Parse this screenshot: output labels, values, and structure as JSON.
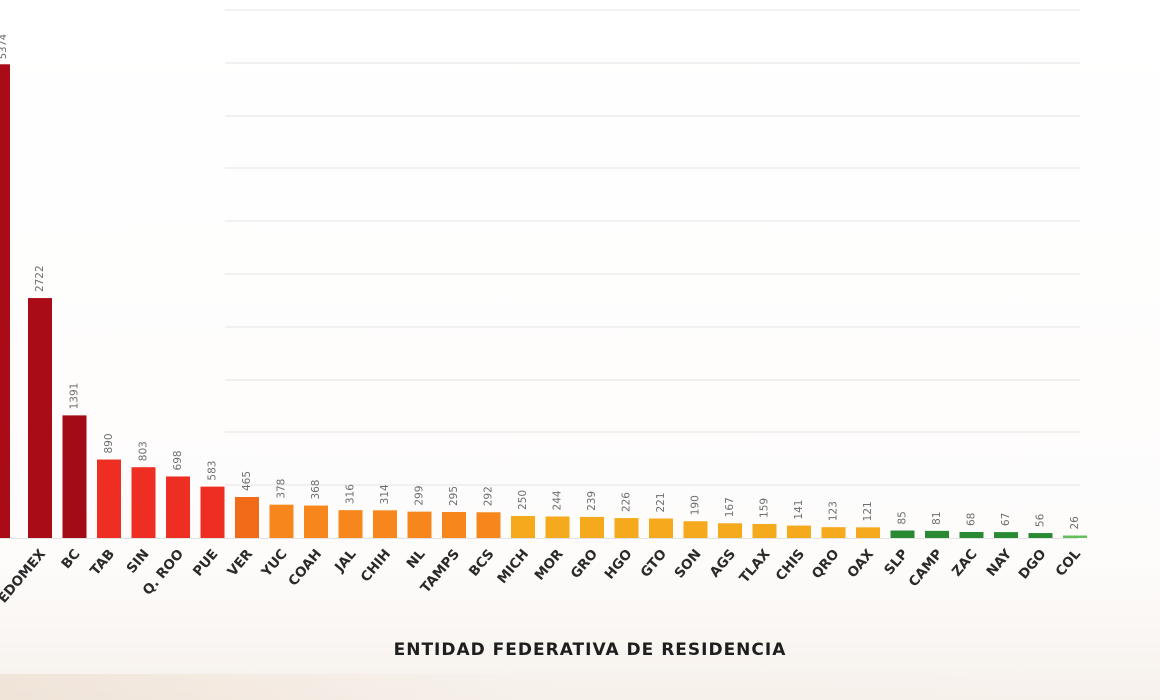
{
  "chart_data": {
    "type": "bar",
    "xlabel": "ENTIDAD FEDERATIVA DE RESIDENCIA",
    "ylim": [
      0,
      5400
    ],
    "grid": true,
    "categories": [
      "EDOMEX",
      "BC",
      "TAB",
      "SIN",
      "Q. ROO",
      "PUE",
      "VER",
      "YUC",
      "COAH",
      "JAL",
      "CHIH",
      "NL",
      "TAMPS",
      "BCS",
      "MICH",
      "MOR",
      "GRO",
      "HGO",
      "GTO",
      "SON",
      "AGS",
      "TLAX",
      "CHIS",
      "QRO",
      "OAX",
      "SLP",
      "CAMP",
      "ZAC",
      "NAY",
      "DGO",
      "COL"
    ],
    "values": [
      2722,
      1391,
      890,
      803,
      698,
      583,
      465,
      378,
      368,
      316,
      314,
      299,
      295,
      292,
      250,
      244,
      239,
      226,
      221,
      190,
      167,
      159,
      141,
      123,
      121,
      85,
      81,
      68,
      67,
      56,
      26
    ],
    "value_labels": [
      "2722",
      "1391",
      "890",
      "803",
      "698",
      "583",
      "465",
      "378",
      "368",
      "316",
      "314",
      "299",
      "295",
      "292",
      "250",
      "244",
      "239",
      "226",
      "221",
      "190",
      "167",
      "159",
      "141",
      "123",
      "121",
      "85",
      "81",
      "68",
      "67",
      "56",
      "26"
    ],
    "colors": [
      "#aa0c17",
      "#a30c16",
      "#ee2e22",
      "#ee2e22",
      "#ee2e22",
      "#ee2e22",
      "#f26b18",
      "#f7871c",
      "#f7871c",
      "#f7871c",
      "#f7871c",
      "#f7871c",
      "#f7871c",
      "#f7871c",
      "#f4aa1c",
      "#f4aa1c",
      "#f4aa1c",
      "#f4aa1c",
      "#f4aa1c",
      "#f4aa1c",
      "#f4aa1c",
      "#f4aa1c",
      "#f4aa1c",
      "#f4aa1c",
      "#f4aa1c",
      "#2a8a34",
      "#2a8a34",
      "#2a8a34",
      "#2a8a34",
      "#2a8a34",
      "#63bf5e"
    ],
    "partial_bar": {
      "value": 5374,
      "label": "5374",
      "color": "#aa0c17"
    }
  }
}
